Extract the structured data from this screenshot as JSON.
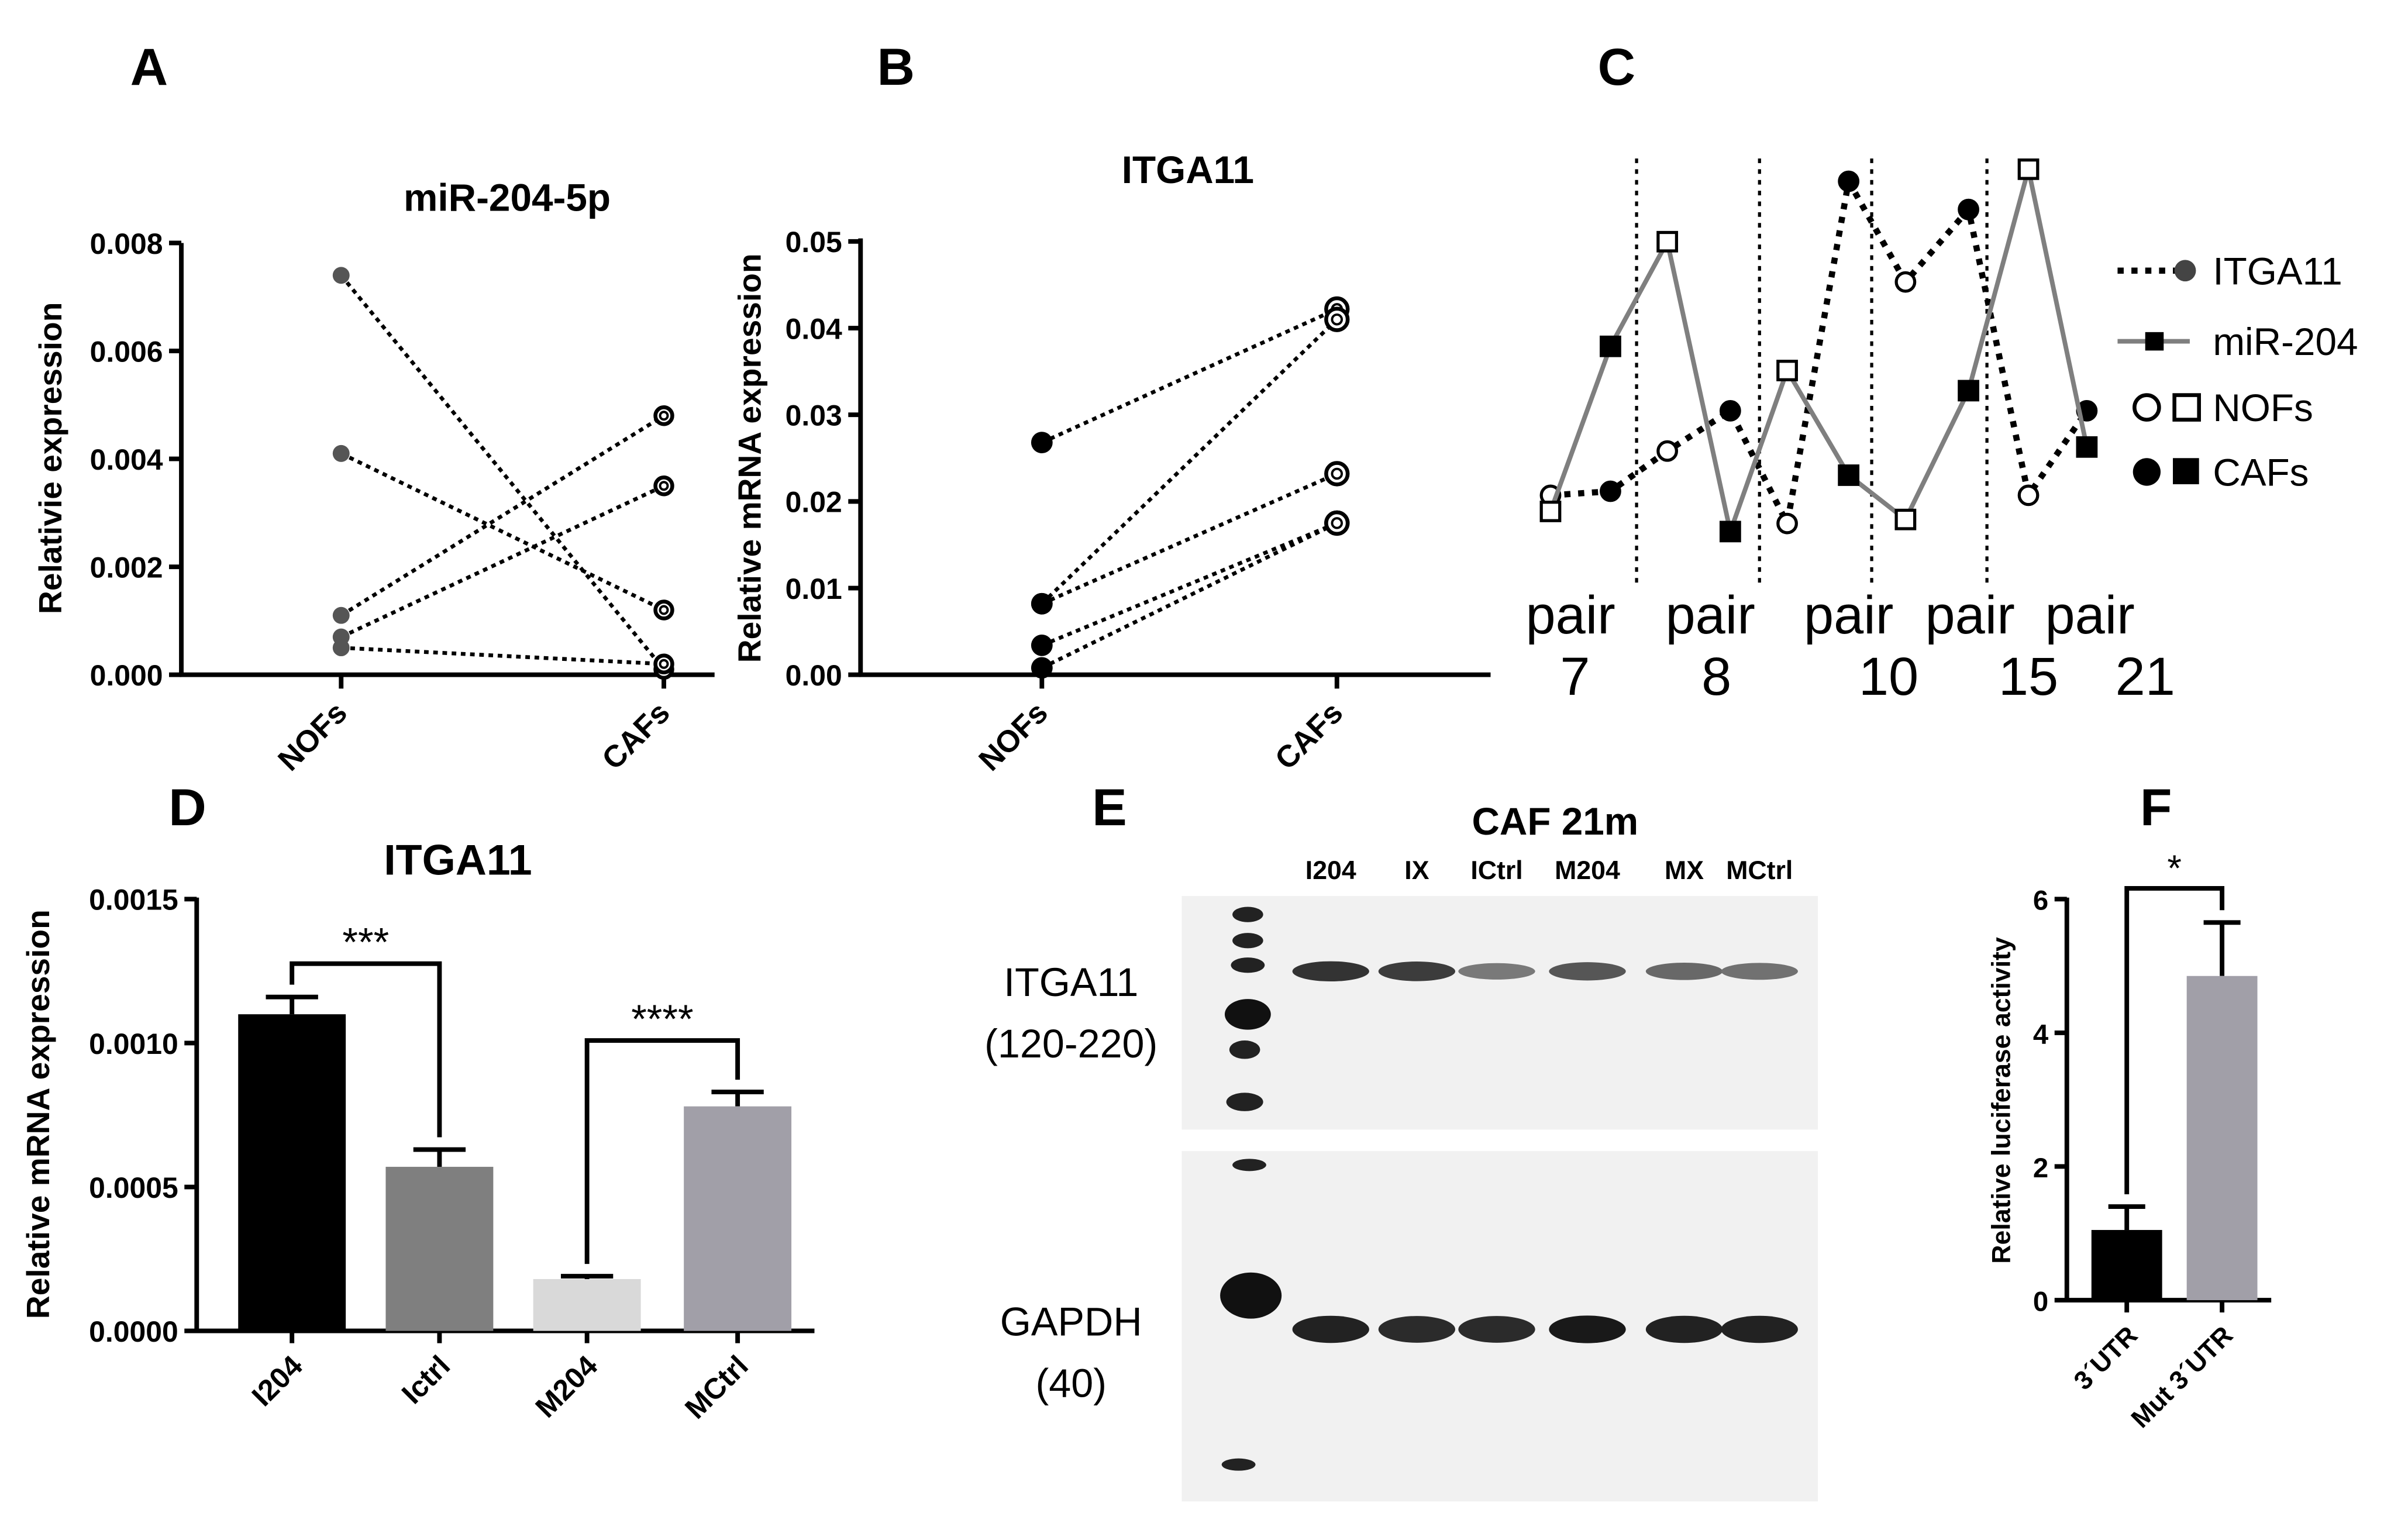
{
  "chart_data": [
    {
      "panel": "A",
      "type": "scatter",
      "title": "miR-204-5p",
      "ylabel": "Relativie expression",
      "categories": [
        "NOFs",
        "CAFs"
      ],
      "ylim": [
        0,
        0.008
      ],
      "yticks": [
        "0.000",
        "0.002",
        "0.004",
        "0.006",
        "0.008"
      ],
      "pairs": [
        [
          0.0074,
          0.0001
        ],
        [
          0.0041,
          0.0012
        ],
        [
          0.0011,
          0.0048
        ],
        [
          0.0007,
          0.0035
        ],
        [
          0.0005,
          0.0002
        ]
      ]
    },
    {
      "panel": "B",
      "type": "scatter",
      "title": "ITGA11",
      "ylabel": "Relative mRNA expression",
      "categories": [
        "NOFs",
        "CAFs"
      ],
      "ylim": [
        0,
        0.05
      ],
      "yticks": [
        "0.00",
        "0.01",
        "0.02",
        "0.03",
        "0.04",
        "0.05"
      ],
      "pairs": [
        [
          0.0268,
          0.0422
        ],
        [
          0.0082,
          0.041
        ],
        [
          0.0082,
          0.0232
        ],
        [
          0.0034,
          0.0175
        ],
        [
          0.0008,
          0.0175
        ]
      ]
    },
    {
      "panel": "C",
      "type": "line",
      "categories": [
        "pair 7",
        "pair 8",
        "pair 10",
        "pair 15",
        "pair 21"
      ],
      "xlabels": [
        {
          "top": "pair",
          "bottom": "7"
        },
        {
          "top": "pair",
          "bottom": "8"
        },
        {
          "top": "pair",
          "bottom": "10"
        },
        {
          "top": "pair",
          "bottom": "15"
        },
        {
          "top": "pair",
          "bottom": "21"
        }
      ],
      "series": [
        {
          "name": "ITGA11",
          "nofs": [
            0.19,
            0.3,
            0.12,
            0.72,
            0.19
          ],
          "cafs": [
            0.2,
            0.4,
            0.97,
            0.9,
            0.4
          ]
        },
        {
          "name": "miR-204",
          "nofs": [
            0.15,
            0.82,
            0.5,
            0.13,
            1.0
          ],
          "cafs": [
            0.56,
            0.1,
            0.24,
            0.45,
            0.31
          ]
        }
      ],
      "legend": [
        {
          "label": "ITGA11",
          "style": "dotted-circle"
        },
        {
          "label": "miR-204",
          "style": "solid-square"
        },
        {
          "label": "NOFs",
          "style": "open"
        },
        {
          "label": "CAFs",
          "style": "filled"
        }
      ],
      "legend_position": "right",
      "colors": {
        "itga11": "#000000",
        "mir204": "#7f7f7f"
      }
    },
    {
      "panel": "D",
      "type": "bar",
      "title": "ITGA11",
      "ylabel": "Relative mRNA expression",
      "categories": [
        "I204",
        "Ictrl",
        "M204",
        "MCtrl"
      ],
      "values": [
        0.0011,
        0.00057,
        0.00018,
        0.00078
      ],
      "errors": [
        6e-05,
        6e-05,
        1e-05,
        5e-05
      ],
      "colors": [
        "#000000",
        "#7f7f7f",
        "#d9d9d9",
        "#a19fa8"
      ],
      "ylim": [
        0,
        0.0015
      ],
      "yticks": [
        "0.0000",
        "0.0005",
        "0.0010",
        "0.0015"
      ],
      "significance": [
        {
          "from": 0,
          "to": 1,
          "label": "***"
        },
        {
          "from": 2,
          "to": 3,
          "label": "****"
        }
      ]
    },
    {
      "panel": "E",
      "type": "table",
      "title": "CAF 21m",
      "lanes": [
        "I204",
        "IX",
        "ICtrl",
        "M204",
        "MX",
        "MCtrl"
      ],
      "blots": [
        {
          "protein": "ITGA11",
          "size": "(120-220)",
          "intensity": [
            0.85,
            0.8,
            0.45,
            0.65,
            0.55,
            0.5
          ]
        },
        {
          "protein": "GAPDH",
          "size": "(40)",
          "intensity": [
            0.95,
            0.9,
            0.9,
            1.0,
            0.95,
            0.95
          ]
        }
      ]
    },
    {
      "panel": "F",
      "type": "bar",
      "ylabel": "Relative luciferase activity",
      "categories": [
        "3´UTR",
        "Mut 3´UTR"
      ],
      "values": [
        1.05,
        4.85
      ],
      "errors": [
        0.35,
        0.8
      ],
      "colors": [
        "#000000",
        "#a19fa8"
      ],
      "ylim": [
        0,
        6
      ],
      "yticks": [
        "0",
        "2",
        "4",
        "6"
      ],
      "significance": [
        {
          "from": 0,
          "to": 1,
          "label": "*"
        }
      ]
    }
  ]
}
